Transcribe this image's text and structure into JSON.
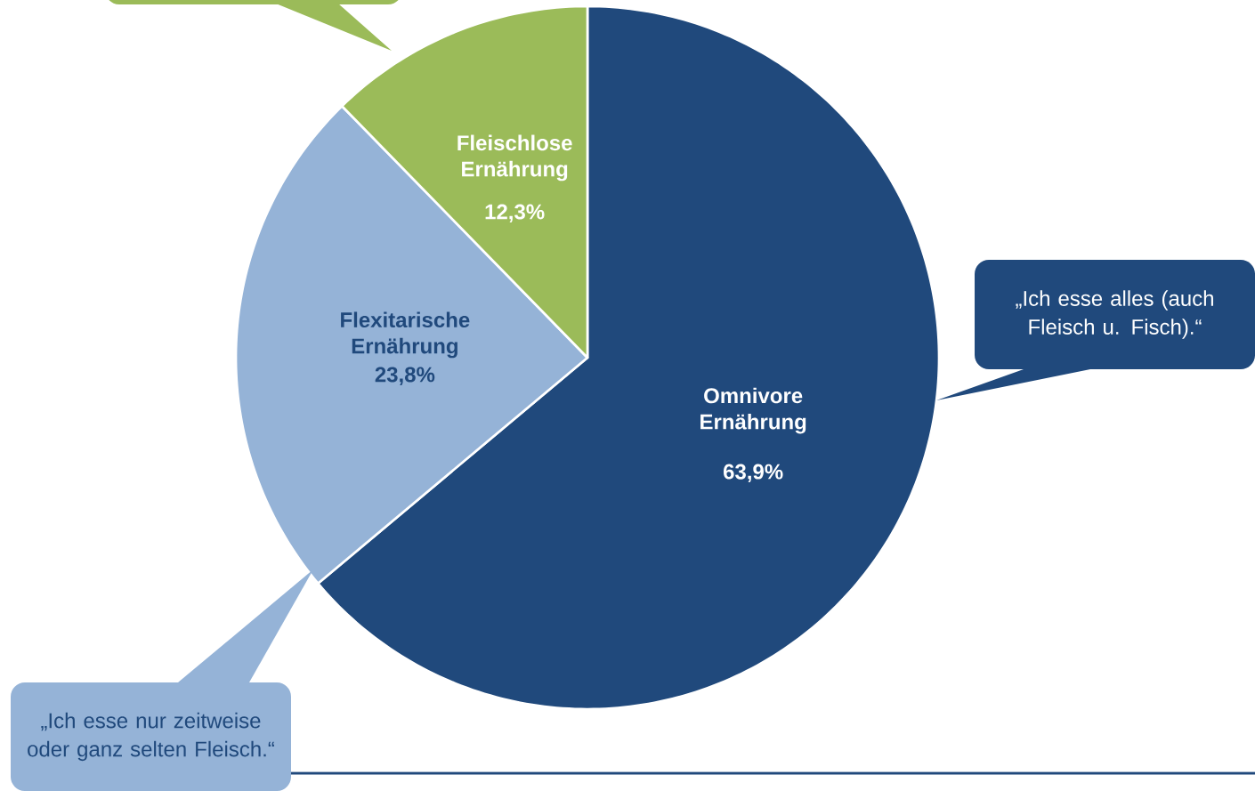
{
  "chart_data": {
    "type": "pie",
    "categories": [
      "Omnivore Ernährung",
      "Flexitarische Ernährung",
      "Fleischlose Ernährung"
    ],
    "values": [
      63.9,
      23.8,
      12.3
    ],
    "colors": [
      "#20497c",
      "#95b3d7",
      "#9bbb59"
    ],
    "value_labels": [
      "63,9%",
      "23,8%",
      "12,3%"
    ],
    "annotations": [
      "„Ich esse alles (auch Fleisch u. Fisch).“",
      "„Ich esse nur zeitweise oder ganz selten Fleisch.“"
    ]
  }
}
